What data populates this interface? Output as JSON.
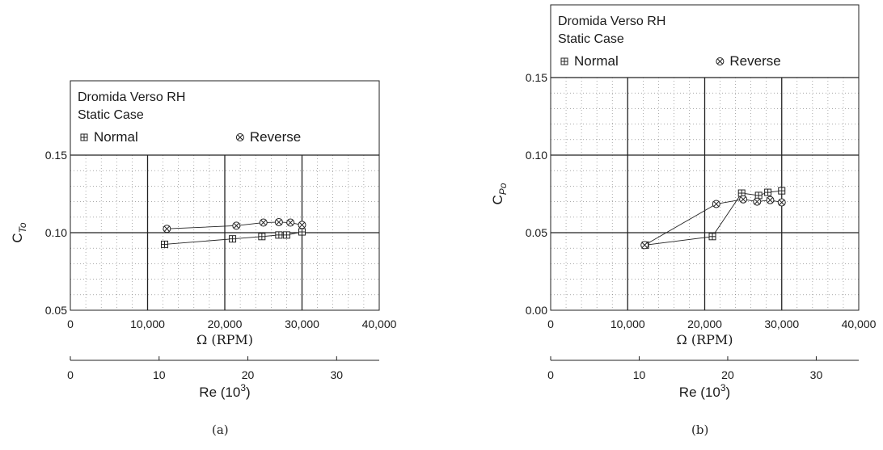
{
  "chart_data": [
    {
      "type": "line",
      "panel_label": "(a)",
      "annotation_lines": [
        "Dromida Verso RH",
        "Static Case"
      ],
      "legend": [
        {
          "label": "Normal",
          "marker": "boxplus"
        },
        {
          "label": "Reverse",
          "marker": "otimes"
        }
      ],
      "ylabel": {
        "main": "C",
        "sub": "To"
      },
      "xlabel": "Ω (RPM)",
      "x2label": {
        "main": "Re (10",
        "sup": "3",
        "close": ")"
      },
      "xlim": [
        0,
        40000
      ],
      "ylim": [
        0.05,
        0.15
      ],
      "xticks": [
        0,
        10000,
        20000,
        30000,
        40000
      ],
      "xtick_labels": [
        "0",
        "10,000",
        "20,000",
        "30,000",
        "40,000"
      ],
      "yticks": [
        0.05,
        0.1,
        0.15
      ],
      "ytick_labels": [
        "0.05",
        "0.10",
        "0.15"
      ],
      "x2ticks": [
        0,
        10,
        20,
        30
      ],
      "x2tick_labels": [
        "0",
        "10",
        "20",
        "30"
      ],
      "x2lim": [
        0,
        34.8
      ],
      "grid": true,
      "series": [
        {
          "name": "Normal",
          "marker": "boxplus",
          "x": [
            12200,
            21000,
            24800,
            27000,
            28000,
            30000
          ],
          "y": [
            0.0925,
            0.096,
            0.0975,
            0.0985,
            0.0985,
            0.1005
          ]
        },
        {
          "name": "Reverse",
          "marker": "otimes",
          "x": [
            12500,
            21500,
            25000,
            27000,
            28500,
            30000
          ],
          "y": [
            0.1025,
            0.1045,
            0.1065,
            0.1068,
            0.1065,
            0.105
          ]
        }
      ]
    },
    {
      "type": "line",
      "panel_label": "(b)",
      "annotation_lines": [
        "Dromida Verso RH",
        "Static Case"
      ],
      "legend": [
        {
          "label": "Normal",
          "marker": "boxplus"
        },
        {
          "label": "Reverse",
          "marker": "otimes"
        }
      ],
      "ylabel": {
        "main": "C",
        "sub": "Po"
      },
      "xlabel": "Ω (RPM)",
      "x2label": {
        "main": "Re (10",
        "sup": "3",
        "close": ")"
      },
      "xlim": [
        0,
        40000
      ],
      "ylim": [
        0.0,
        0.15
      ],
      "xticks": [
        0,
        10000,
        20000,
        30000,
        40000
      ],
      "xtick_labels": [
        "0",
        "10,000",
        "20,000",
        "30,000",
        "40,000"
      ],
      "yticks": [
        0.0,
        0.05,
        0.1,
        0.15
      ],
      "ytick_labels": [
        "0.00",
        "0.05",
        "0.10",
        "0.15"
      ],
      "x2ticks": [
        0,
        10,
        20,
        30
      ],
      "x2tick_labels": [
        "0",
        "10",
        "20",
        "30"
      ],
      "x2lim": [
        0,
        34.8
      ],
      "grid": true,
      "series": [
        {
          "name": "Normal",
          "marker": "boxplus",
          "x": [
            12300,
            21000,
            24800,
            27000,
            28200,
            30000
          ],
          "y": [
            0.042,
            0.0475,
            0.0755,
            0.074,
            0.076,
            0.077
          ]
        },
        {
          "name": "Reverse",
          "marker": "otimes",
          "x": [
            12200,
            21500,
            25000,
            26800,
            28500,
            30000
          ],
          "y": [
            0.042,
            0.0685,
            0.0715,
            0.07,
            0.071,
            0.0695
          ]
        }
      ]
    }
  ]
}
